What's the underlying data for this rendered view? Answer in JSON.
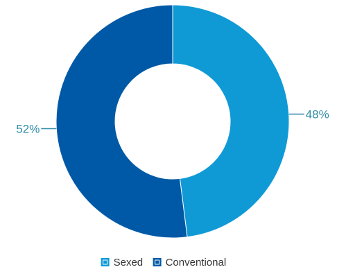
{
  "chart_data": {
    "type": "pie",
    "subtype": "donut",
    "title": "",
    "series": [
      {
        "name": "Sexed",
        "value": 48,
        "label": "48%",
        "color": "#0f9ad6"
      },
      {
        "name": "Conventional",
        "value": 52,
        "label": "52%",
        "color": "#0059a6"
      }
    ],
    "legend_position": "bottom-center",
    "label_color": "#2e8ca8"
  }
}
